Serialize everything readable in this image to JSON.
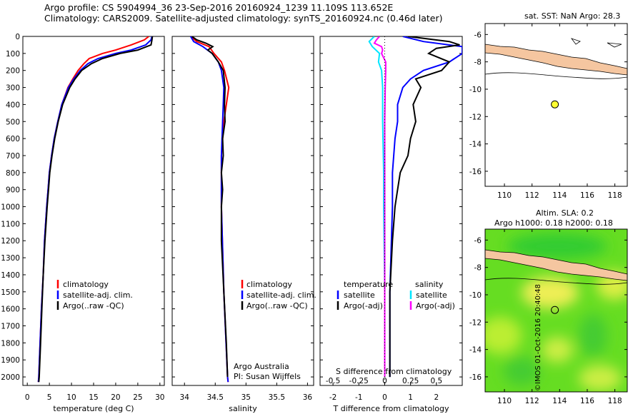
{
  "header": {
    "line1": "Argo profile: CS 5904994_36 23-Sep-2016 20160924_1239 11.109S 113.652E",
    "line2": "Climatology: CARS2009. Satellite-adjusted climatology: synTS_20160924.nc (0.46d later)"
  },
  "footer_credit": "©IMOS 01-Oct-2016 20:40:48",
  "colors": {
    "climatology": "#ff0000",
    "satellite": "#0000ff",
    "argo": "#000000",
    "sat_salinity": "#00e5ff",
    "argo_salinity": "#ff00ff",
    "land": "#f5c6a0",
    "marker": "#ffff33"
  },
  "chart_data": [
    {
      "type": "line",
      "name": "temperature-panel",
      "xlabel": "temperature (deg C)",
      "x_ticks": [
        "0",
        "5",
        "10",
        "15",
        "20",
        "25",
        "30"
      ],
      "y_ticks": [
        "0",
        "100",
        "200",
        "300",
        "400",
        "500",
        "600",
        "700",
        "800",
        "900",
        "1000",
        "1100",
        "1200",
        "1300",
        "1400",
        "1500",
        "1600",
        "1700",
        "1800",
        "1900",
        "2000"
      ],
      "xlim": [
        -1,
        31
      ],
      "ylim": [
        2050,
        0
      ],
      "legend": [
        "climatology",
        "satellite-adj. clim.",
        "Argo(..raw -QC)"
      ],
      "series": [
        {
          "name": "climatology",
          "color": "#ff0000",
          "depth": [
            0,
            20,
            50,
            80,
            100,
            130,
            160,
            200,
            250,
            300,
            400,
            500,
            600,
            700,
            800,
            900,
            1000,
            1200,
            1400,
            1600,
            1800,
            2000,
            2030
          ],
          "values": [
            27.5,
            26.5,
            23.5,
            20,
            17,
            14,
            12.8,
            11.5,
            10.3,
            9.2,
            7.8,
            6.9,
            6.1,
            5.5,
            5,
            4.7,
            4.4,
            3.9,
            3.6,
            3.2,
            2.9,
            2.6,
            2.5
          ]
        },
        {
          "name": "satellite-adj. clim.",
          "color": "#0000ff",
          "depth": [
            0,
            20,
            50,
            80,
            100,
            130,
            160,
            200,
            250,
            300,
            400,
            500,
            600,
            700,
            800,
            900,
            1000,
            1200,
            1400,
            1600,
            1800,
            2000,
            2030
          ],
          "values": [
            28.2,
            28,
            26.8,
            23.5,
            20,
            16,
            13.7,
            12,
            10.5,
            9.3,
            7.8,
            6.9,
            6.1,
            5.5,
            5,
            4.7,
            4.4,
            3.9,
            3.6,
            3.2,
            2.9,
            2.6,
            2.5
          ]
        },
        {
          "name": "Argo(..raw -QC)",
          "color": "#000000",
          "depth": [
            0,
            20,
            50,
            80,
            100,
            130,
            160,
            200,
            250,
            300,
            400,
            500,
            600,
            700,
            800,
            900,
            1000,
            1200,
            1400,
            1600,
            1800,
            2000,
            2030
          ],
          "values": [
            28.3,
            28.2,
            28,
            25,
            21,
            17,
            14.5,
            12.3,
            10.8,
            9.6,
            8,
            7,
            6.2,
            5.6,
            5.1,
            4.8,
            4.5,
            4,
            3.6,
            3.3,
            3,
            2.7,
            2.6
          ]
        }
      ]
    },
    {
      "type": "line",
      "name": "salinity-panel",
      "xlabel": "salinity",
      "x_ticks": [
        "34",
        "34.5",
        "35",
        "35.5",
        "36"
      ],
      "xlim": [
        33.8,
        36.1
      ],
      "ylim": [
        2050,
        0
      ],
      "legend": [
        "climatology",
        "satellite-adj. clim.",
        "Argo(..raw -QC)"
      ],
      "annotation": [
        "Argo Australia",
        "PI: Susan Wijffels"
      ],
      "series": [
        {
          "name": "climatology",
          "color": "#ff0000",
          "depth": [
            0,
            30,
            60,
            100,
            150,
            200,
            300,
            400,
            500,
            700,
            1000,
            1500,
            2000,
            2030
          ],
          "values": [
            34.1,
            34.2,
            34.4,
            34.48,
            34.6,
            34.65,
            34.72,
            34.68,
            34.64,
            34.6,
            34.6,
            34.64,
            34.7,
            34.71
          ]
        },
        {
          "name": "satellite-adj. clim.",
          "color": "#0000ff",
          "depth": [
            0,
            30,
            60,
            100,
            150,
            200,
            300,
            400,
            500,
            700,
            1000,
            1500,
            2000,
            2030
          ],
          "values": [
            34.1,
            34.15,
            34.3,
            34.45,
            34.55,
            34.6,
            34.64,
            34.63,
            34.62,
            34.6,
            34.6,
            34.64,
            34.7,
            34.71
          ]
        },
        {
          "name": "Argo(..raw -QC)",
          "color": "#000000",
          "depth": [
            0,
            20,
            40,
            60,
            80,
            100,
            150,
            200,
            300,
            400,
            500,
            600,
            700,
            800,
            900,
            1000,
            1200,
            1500,
            1800,
            2000
          ],
          "values": [
            34.12,
            34.2,
            34.35,
            34.46,
            34.38,
            34.45,
            34.55,
            34.63,
            34.66,
            34.65,
            34.66,
            34.62,
            34.63,
            34.6,
            34.62,
            34.6,
            34.6,
            34.64,
            34.68,
            34.7
          ]
        }
      ]
    },
    {
      "type": "line",
      "name": "difference-panel",
      "xlabel": "T difference from climatology",
      "xlabel_top": "S difference from climatology",
      "x_ticks": [
        "-2",
        "-1",
        "0",
        "1",
        "2"
      ],
      "x_ticks_top": [
        "-0.5",
        "-0.25",
        "0",
        "0.25",
        "0.5"
      ],
      "xlim": [
        -2.5,
        3
      ],
      "ylim": [
        2050,
        0
      ],
      "legend_left_title": "temperature",
      "legend_right_title": "salinity",
      "legend_left": [
        "satellite",
        "Argo(-adj)"
      ],
      "legend_right": [
        "satellite",
        "Argo(-adj)"
      ],
      "series": [
        {
          "name": "satellite",
          "kind": "T",
          "color": "#0000ff",
          "depth": [
            0,
            30,
            60,
            100,
            150,
            200,
            250,
            300,
            400,
            500,
            600,
            800,
            1000,
            1500,
            2000
          ],
          "values": [
            0.7,
            1.5,
            3,
            3,
            2.5,
            1.5,
            1.0,
            0.7,
            0.5,
            0.5,
            0.4,
            0.3,
            0.3,
            0.2,
            0.2
          ]
        },
        {
          "name": "Argo(-adj)",
          "kind": "T",
          "color": "#000000",
          "depth": [
            0,
            30,
            50,
            70,
            100,
            150,
            200,
            250,
            300,
            400,
            500,
            600,
            700,
            800,
            900,
            1000,
            1200,
            1500,
            1800,
            2000
          ],
          "values": [
            0.9,
            2.5,
            2.9,
            2.0,
            1.7,
            2.5,
            2.2,
            1.2,
            1.4,
            1.1,
            1.2,
            1.0,
            0.9,
            0.6,
            0.5,
            0.4,
            0.3,
            0.2,
            0.2,
            0.2
          ]
        },
        {
          "name": "satellite",
          "kind": "S",
          "color": "#00e5ff",
          "depth": [
            0,
            30,
            60,
            100,
            150,
            200,
            300,
            500,
            800,
            1000,
            1500,
            2000
          ],
          "values": [
            -0.1,
            -0.15,
            -0.12,
            -0.05,
            -0.06,
            -0.03,
            -0.02,
            -0.02,
            -0.01,
            -0.01,
            0,
            0
          ]
        },
        {
          "name": "Argo(-adj)",
          "kind": "S",
          "color": "#ff00ff",
          "depth": [
            0,
            20,
            40,
            60,
            80,
            100,
            150,
            200,
            300,
            500,
            800,
            1000,
            1500,
            2000
          ],
          "values": [
            -0.05,
            -0.08,
            -0.1,
            -0.03,
            -0.02,
            -0.03,
            0.01,
            0.01,
            0.005,
            0,
            0,
            0,
            0,
            0
          ]
        }
      ]
    },
    {
      "type": "scatter",
      "name": "sst-map",
      "title": "sat. SST: NaN Argo: 28.3",
      "x_ticks": [
        "110",
        "112",
        "114",
        "116",
        "118"
      ],
      "y_ticks": [
        "-6",
        "-8",
        "-10",
        "-12",
        "-14",
        "-16"
      ],
      "xlim": [
        108.6,
        118.9
      ],
      "ylim": [
        -17.1,
        -5.2
      ],
      "point": {
        "lon": 113.652,
        "lat": -11.109
      }
    },
    {
      "type": "heatmap",
      "name": "sla-map",
      "title_line1": "Altim. SLA: 0.2",
      "title_line2": "Argo h1000: 0.18 h2000: 0.18",
      "x_ticks": [
        "110",
        "112",
        "114",
        "116",
        "118"
      ],
      "y_ticks": [
        "-6",
        "-8",
        "-10",
        "-12",
        "-14",
        "-16"
      ],
      "xlim": [
        108.6,
        118.9
      ],
      "ylim": [
        -17.1,
        -5.2
      ],
      "point": {
        "lon": 113.652,
        "lat": -11.109
      }
    }
  ]
}
